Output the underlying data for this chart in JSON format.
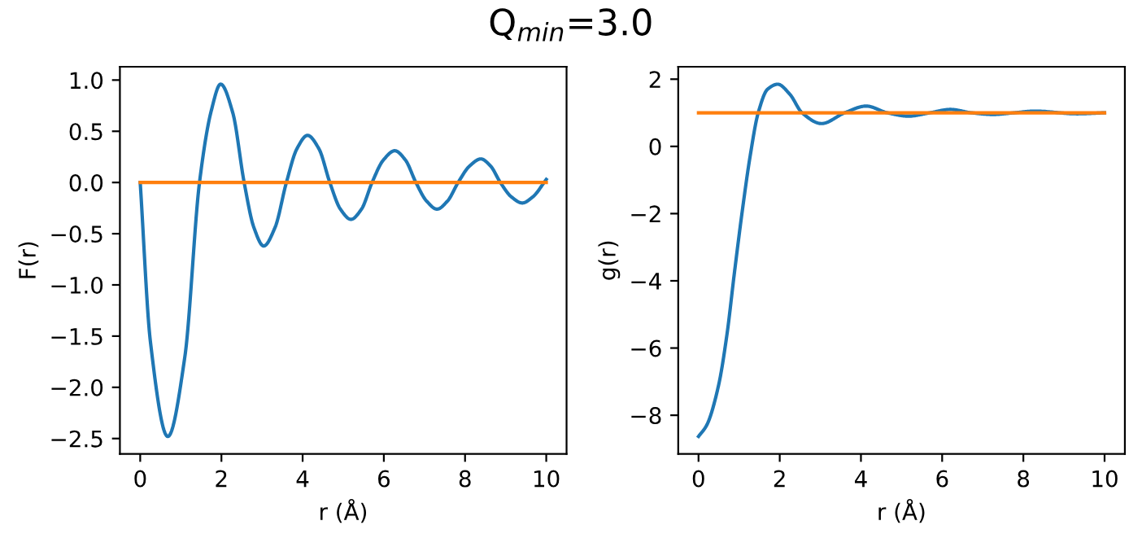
{
  "chart_data": [
    {
      "type": "line",
      "title": "Q$_{min}$=3.0",
      "xlabel": "r (Å)",
      "ylabel": "F(r)",
      "xlim": [
        -0.5,
        10.5
      ],
      "ylim": [
        -2.65,
        1.13
      ],
      "xticks": [
        0,
        2,
        4,
        6,
        8,
        10
      ],
      "yticks": [
        {
          "value": -2.5,
          "label": "−2.5"
        },
        {
          "value": -2.0,
          "label": "−2.0"
        },
        {
          "value": -1.5,
          "label": "−1.5"
        },
        {
          "value": -1.0,
          "label": "−1.0"
        },
        {
          "value": -0.5,
          "label": "−0.5"
        },
        {
          "value": 0.0,
          "label": "0.0"
        },
        {
          "value": 0.5,
          "label": "0.5"
        },
        {
          "value": 1.0,
          "label": "1.0"
        }
      ],
      "grid": false,
      "legend": false,
      "series": [
        {
          "color": "#1f77b4",
          "x": [
            0,
            0.25,
            0.68,
            1.1,
            1.46,
            1.75,
            1.98,
            2.28,
            2.56,
            2.8,
            3.04,
            3.32,
            3.6,
            3.86,
            4.12,
            4.4,
            4.67,
            4.93,
            5.19,
            5.45,
            5.71,
            5.99,
            6.27,
            6.53,
            6.79,
            7.05,
            7.31,
            7.57,
            7.83,
            8.11,
            8.39,
            8.63,
            8.87,
            9.14,
            9.41,
            9.67,
            10
          ],
          "values": [
            0,
            -1.55,
            -2.48,
            -1.7,
            0,
            0.7,
            0.96,
            0.68,
            0,
            -0.44,
            -0.62,
            -0.44,
            0,
            0.33,
            0.46,
            0.33,
            0,
            -0.26,
            -0.36,
            -0.26,
            0,
            0.22,
            0.31,
            0.22,
            0,
            -0.18,
            -0.26,
            -0.18,
            0,
            0.16,
            0.23,
            0.16,
            0,
            -0.14,
            -0.2,
            -0.14,
            0.03
          ]
        },
        {
          "color": "#ff7f0e",
          "x": [
            0,
            10
          ],
          "values": [
            0,
            0
          ]
        }
      ]
    },
    {
      "type": "line",
      "xlabel": "r (Å)",
      "ylabel": "g(r)",
      "xlim": [
        -0.5,
        10.5
      ],
      "ylim": [
        -9.15,
        2.37
      ],
      "xticks": [
        0,
        2,
        4,
        6,
        8,
        10
      ],
      "yticks": [
        {
          "value": -8,
          "label": "−8"
        },
        {
          "value": -6,
          "label": "−6"
        },
        {
          "value": -4,
          "label": "−4"
        },
        {
          "value": -2,
          "label": "−2"
        },
        0,
        2
      ],
      "grid": false,
      "legend": false,
      "series": [
        {
          "color": "#1f77b4",
          "x": [
            0,
            0.2,
            0.49,
            0.7,
            0.88,
            1.08,
            1.27,
            1.47,
            1.7,
            1.95,
            2.25,
            2.55,
            3.03,
            3.6,
            4.13,
            4.65,
            5.17,
            5.7,
            6.2,
            6.72,
            7.25,
            7.77,
            8.29,
            9.32,
            10
          ],
          "values": [
            -8.63,
            -8.3,
            -7.13,
            -5.6,
            -3.8,
            -1.9,
            -0.3,
            1.0,
            1.7,
            1.85,
            1.55,
            1.0,
            0.68,
            1.0,
            1.2,
            1.0,
            0.9,
            1.0,
            1.1,
            1.0,
            0.95,
            1.0,
            1.05,
            0.97,
            1.0
          ]
        },
        {
          "color": "#ff7f0e",
          "x": [
            0,
            10
          ],
          "values": [
            1,
            1
          ]
        }
      ]
    }
  ]
}
